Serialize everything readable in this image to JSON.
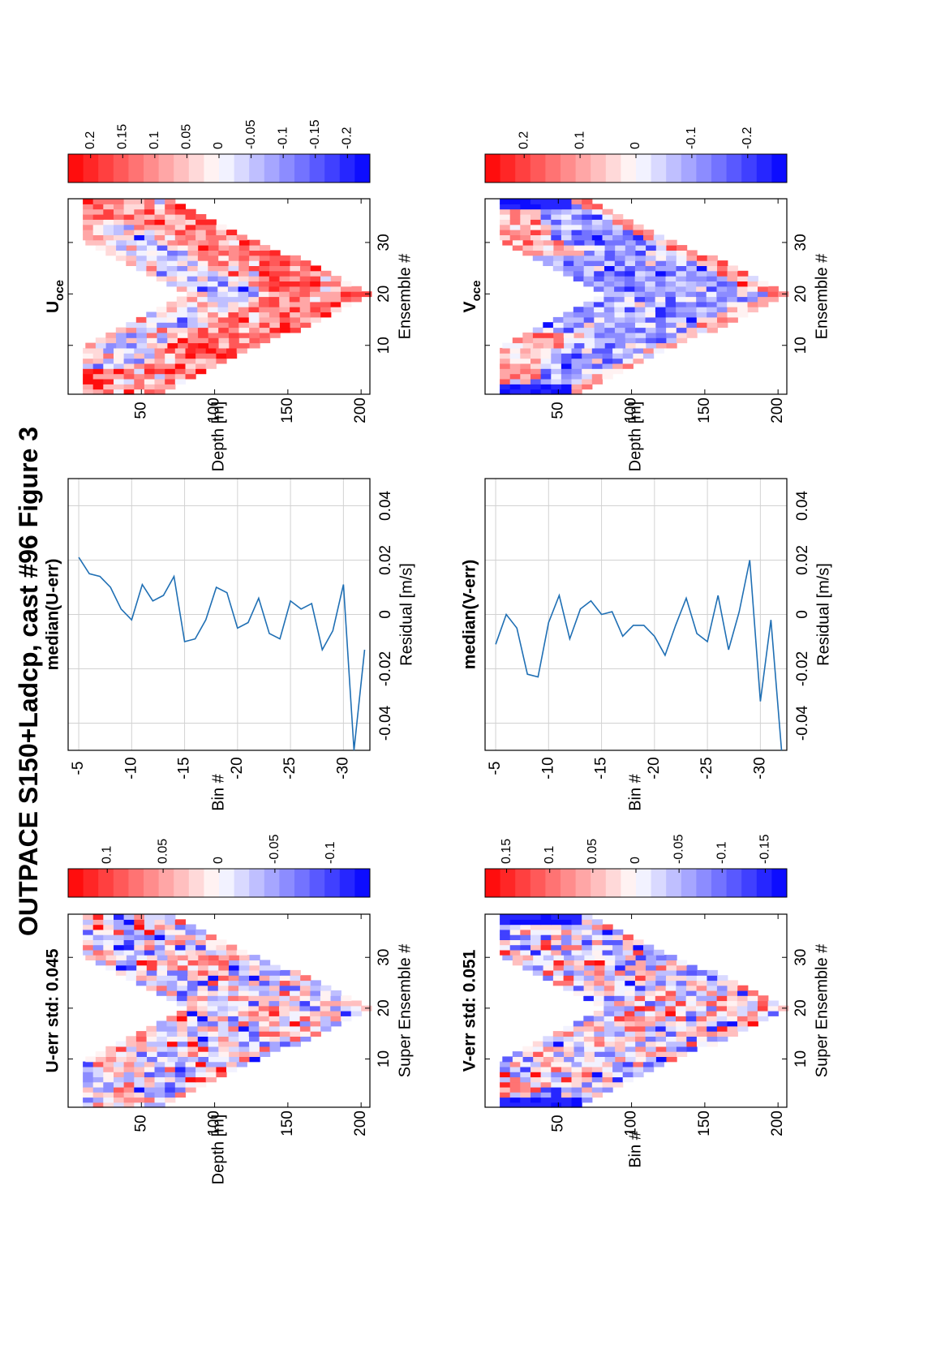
{
  "figure": {
    "title": "OUTPACE S150+Ladcp, cast #96  Figure 3",
    "orientation": "rotated-90-ccw",
    "colors": {
      "line": "#1f6fb4",
      "grid": "#d2d2d2",
      "positive": "#ff0000",
      "negative": "#0000ff",
      "zero": "#ffffff"
    }
  },
  "chart_data": [
    {
      "id": "u_err",
      "type": "heatmap",
      "title": "U-err std: 0.045",
      "xlabel": "Super Ensemble #",
      "ylabel": "Depth [m]",
      "x_ticks": [
        "10",
        "20",
        "30"
      ],
      "y_ticks": [
        "50",
        "100",
        "150",
        "200"
      ],
      "xlim": [
        1,
        38
      ],
      "ylim": [
        0,
        206
      ],
      "colorbar": {
        "range": [
          -0.135,
          0.135
        ],
        "levels": 20,
        "ticks": [
          "0.1",
          "0.05",
          "0",
          "-0.05",
          "-0.1"
        ],
        "tick_values": [
          0.1,
          0.05,
          0,
          -0.05,
          -0.1
        ]
      },
      "pattern": {
        "vertex_ensemble": 20,
        "top_depth": 10,
        "bottom_depth": 206,
        "band_width": 110,
        "cell_depth": 7
      },
      "note_values": "chevron-shaped coverage; values roughly symmetric around 0, mostly within ±0.1"
    },
    {
      "id": "u_err_median",
      "type": "line",
      "title": "median(U-err)",
      "xlabel": "Residual [m/s]",
      "ylabel": "Bin #",
      "x_ticks": [
        "-0.04",
        "-0.02",
        "0",
        "0.02",
        "0.04"
      ],
      "x_tick_values": [
        -0.04,
        -0.02,
        0,
        0.02,
        0.04
      ],
      "y_ticks": [
        "-5",
        "-10",
        "-15",
        "-20",
        "-25",
        "-30"
      ],
      "y_tick_values": [
        -5,
        -10,
        -15,
        -20,
        -25,
        -30
      ],
      "xlim": [
        -0.05,
        0.05
      ],
      "ylim": [
        -32.5,
        -4
      ],
      "series": [
        {
          "bins": [
            -5,
            -6,
            -7,
            -8,
            -9,
            -10,
            -11,
            -12,
            -13,
            -14,
            -15,
            -16,
            -17,
            -18,
            -19,
            -20,
            -21,
            -22,
            -23,
            -24,
            -25,
            -26,
            -27,
            -28,
            -29,
            -30,
            -31,
            -32
          ],
          "values": [
            0.021,
            0.015,
            0.014,
            0.01,
            0.002,
            -0.002,
            0.011,
            0.005,
            0.007,
            0.014,
            -0.01,
            -0.009,
            -0.002,
            0.01,
            0.008,
            -0.005,
            -0.003,
            0.006,
            -0.007,
            -0.009,
            0.005,
            0.002,
            0.004,
            -0.013,
            -0.006,
            0.011,
            -0.05,
            -0.013
          ]
        }
      ]
    },
    {
      "id": "u_oce",
      "type": "heatmap",
      "title": "U",
      "title_sub": "oce",
      "xlabel": "Ensemble #",
      "ylabel": "Depth [m]",
      "x_ticks": [
        "10",
        "20",
        "30"
      ],
      "y_ticks": [
        "50",
        "100",
        "150",
        "200"
      ],
      "xlim": [
        1,
        38
      ],
      "ylim": [
        0,
        206
      ],
      "colorbar": {
        "range": [
          -0.235,
          0.235
        ],
        "levels": 20,
        "ticks": [
          "0.2",
          "0.15",
          "0.1",
          "0.05",
          "0",
          "-0.05",
          "-0.1",
          "-0.15",
          "-0.2"
        ],
        "tick_values": [
          0.2,
          0.15,
          0.1,
          0.05,
          0,
          -0.05,
          -0.1,
          -0.15,
          -0.2
        ]
      },
      "pattern": {
        "vertex_ensemble": 20,
        "top_depth": 10,
        "bottom_depth": 206,
        "band_width": 110,
        "cell_depth": 7
      },
      "note_values": "positive (red) values near 0.1-0.15 dominate the lower part of the band; near-surface edges strongly positive; mid band weakly negative"
    },
    {
      "id": "v_err",
      "type": "heatmap",
      "title": "V-err std: 0.051",
      "xlabel": "Super Ensemble #",
      "ylabel": "Bin #",
      "x_ticks": [
        "10",
        "20",
        "30"
      ],
      "y_ticks": [
        "50",
        "100",
        "150",
        "200"
      ],
      "xlim": [
        1,
        38
      ],
      "ylim": [
        0,
        206
      ],
      "colorbar": {
        "range": [
          -0.175,
          0.175
        ],
        "levels": 20,
        "ticks": [
          "0.15",
          "0.1",
          "0.05",
          "0",
          "-0.05",
          "-0.1",
          "-0.15"
        ],
        "tick_values": [
          0.15,
          0.1,
          0.05,
          0,
          -0.05,
          -0.1,
          -0.15
        ]
      },
      "pattern": {
        "vertex_ensemble": 20,
        "top_depth": 10,
        "bottom_depth": 206,
        "band_width": 110,
        "cell_depth": 7
      },
      "note_values": "chevron-shaped coverage; strong negative values at the first and last ensembles near the surface"
    },
    {
      "id": "v_err_median",
      "type": "line",
      "title": "median(V-err)",
      "xlabel": "Residual [m/s]",
      "ylabel": "Bin #",
      "x_ticks": [
        "-0.04",
        "-0.02",
        "0",
        "0.02",
        "0.04"
      ],
      "x_tick_values": [
        -0.04,
        -0.02,
        0,
        0.02,
        0.04
      ],
      "y_ticks": [
        "-5",
        "-10",
        "-15",
        "-20",
        "-25",
        "-30"
      ],
      "y_tick_values": [
        -5,
        -10,
        -15,
        -20,
        -25,
        -30
      ],
      "xlim": [
        -0.05,
        0.05
      ],
      "ylim": [
        -32.5,
        -4
      ],
      "series": [
        {
          "bins": [
            -5,
            -6,
            -7,
            -8,
            -9,
            -10,
            -11,
            -12,
            -13,
            -14,
            -15,
            -16,
            -17,
            -18,
            -19,
            -20,
            -21,
            -22,
            -23,
            -24,
            -25,
            -26,
            -27,
            -28,
            -29,
            -30,
            -31,
            -32
          ],
          "values": [
            -0.011,
            0.0,
            -0.005,
            -0.022,
            -0.023,
            -0.003,
            0.007,
            -0.009,
            0.002,
            0.005,
            0.0,
            0.001,
            -0.008,
            -0.004,
            -0.004,
            -0.008,
            -0.015,
            -0.004,
            0.006,
            -0.007,
            -0.01,
            0.007,
            -0.013,
            0.001,
            0.02,
            -0.032,
            -0.002,
            -0.05
          ]
        }
      ]
    },
    {
      "id": "v_oce",
      "type": "heatmap",
      "title": "V",
      "title_sub": "oce",
      "xlabel": "Ensemble #",
      "ylabel": "Depth [m]",
      "x_ticks": [
        "10",
        "20",
        "30"
      ],
      "y_ticks": [
        "50",
        "100",
        "150",
        "200"
      ],
      "xlim": [
        1,
        38
      ],
      "ylim": [
        0,
        206
      ],
      "colorbar": {
        "range": [
          -0.27,
          0.27
        ],
        "levels": 20,
        "ticks": [
          "0.2",
          "0.1",
          "0",
          "-0.1",
          "-0.2"
        ],
        "tick_values": [
          0.2,
          0.1,
          0,
          -0.1,
          -0.2
        ]
      },
      "pattern": {
        "vertex_ensemble": 20,
        "top_depth": 10,
        "bottom_depth": 206,
        "band_width": 110,
        "cell_depth": 7
      },
      "note_values": "mostly negative (blue, about -0.1) in the middle of the band, positive (red, about 0.1) near the edges; strong negative at first and last ensembles near the surface"
    }
  ]
}
